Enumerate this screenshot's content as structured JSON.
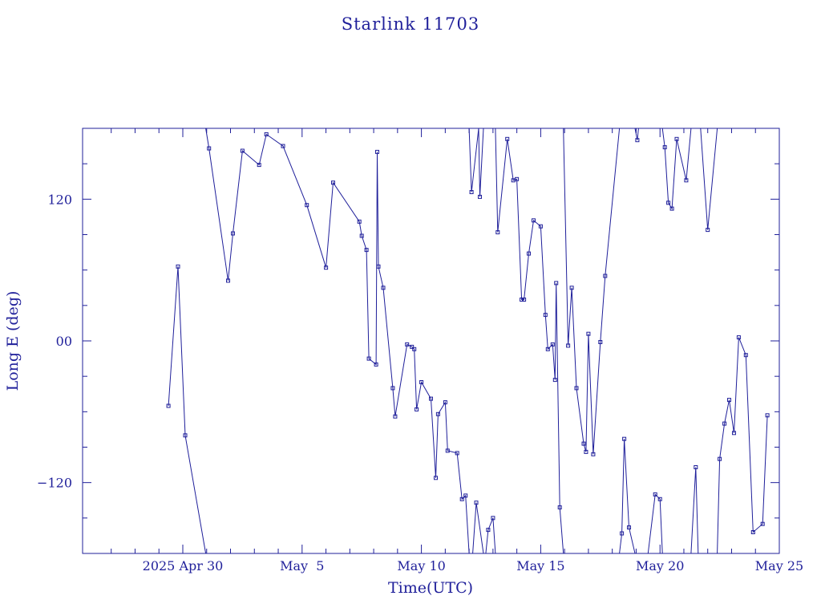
{
  "chart_data": {
    "type": "line",
    "title": "Starlink 11703",
    "xlabel": "Time(UTC)",
    "ylabel": "Long E (deg)",
    "x_ticks": [
      {
        "label": "2025 Apr 30",
        "day": 0
      },
      {
        "label": "May  5",
        "day": 5
      },
      {
        "label": "May 10",
        "day": 10
      },
      {
        "label": "May 15",
        "day": 15
      },
      {
        "label": "May 20",
        "day": 20
      },
      {
        "label": "May 25",
        "day": 25
      }
    ],
    "y_ticks": [
      {
        "label": "120",
        "value": 120
      },
      {
        "label": "00",
        "value": 0
      },
      {
        "label": "−120",
        "value": -120
      }
    ],
    "xlim_days_from_apr30": [
      -4.2,
      25.0
    ],
    "ylim": [
      -180,
      180
    ],
    "marker": "small-square",
    "grid": false,
    "series": [
      {
        "segments": [
          [
            [
              -0.6,
              -55
            ],
            [
              -0.2,
              63
            ],
            [
              0.1,
              -80
            ],
            [
              0.96,
              -180
            ]
          ],
          [
            [
              0.96,
              180
            ],
            [
              1.1,
              163
            ],
            [
              1.9,
              51
            ],
            [
              2.1,
              91
            ],
            [
              2.5,
              161
            ],
            [
              3.2,
              149
            ],
            [
              3.5,
              175
            ],
            [
              4.2,
              165
            ],
            [
              5.2,
              115
            ],
            [
              6.0,
              62
            ],
            [
              6.3,
              134
            ],
            [
              7.4,
              101
            ],
            [
              7.5,
              89
            ],
            [
              7.7,
              77
            ],
            [
              7.8,
              -15
            ],
            [
              8.1,
              -20
            ],
            [
              8.15,
              160
            ],
            [
              8.2,
              63
            ],
            [
              8.4,
              45
            ],
            [
              8.8,
              -40
            ],
            [
              8.9,
              -64
            ],
            [
              9.4,
              -3
            ],
            [
              9.6,
              -5
            ],
            [
              9.7,
              -7
            ],
            [
              9.8,
              -58
            ],
            [
              10.0,
              -35
            ],
            [
              10.4,
              -49
            ],
            [
              10.6,
              -116
            ],
            [
              10.7,
              -62
            ],
            [
              11.0,
              -52
            ],
            [
              11.1,
              -93
            ],
            [
              11.5,
              -95
            ],
            [
              11.7,
              -134
            ],
            [
              11.85,
              -131
            ],
            [
              12.0,
              -180
            ]
          ],
          [
            [
              12.0,
              180
            ],
            [
              12.1,
              126
            ],
            [
              12.4,
              180
            ]
          ],
          [
            [
              12.4,
              180
            ],
            [
              12.45,
              122
            ],
            [
              12.6,
              180
            ]
          ],
          [
            [
              12.6,
              -180
            ],
            [
              12.3,
              -137
            ],
            [
              12.15,
              -180
            ]
          ],
          [
            [
              12.7,
              -180
            ],
            [
              12.8,
              -160
            ],
            [
              13.0,
              -150
            ],
            [
              13.1,
              -180
            ]
          ],
          [
            [
              13.1,
              180
            ],
            [
              13.2,
              92
            ],
            [
              13.6,
              171
            ],
            [
              13.85,
              136
            ],
            [
              14.0,
              137
            ],
            [
              14.2,
              35
            ],
            [
              14.3,
              35
            ],
            [
              14.5,
              74
            ],
            [
              14.7,
              102
            ],
            [
              15.0,
              97
            ],
            [
              15.2,
              22
            ],
            [
              15.3,
              -7
            ],
            [
              15.5,
              -3
            ],
            [
              15.6,
              -33
            ],
            [
              15.65,
              49
            ],
            [
              15.8,
              -141
            ],
            [
              15.95,
              -180
            ]
          ],
          [
            [
              15.95,
              180
            ],
            [
              16.15,
              -4
            ],
            [
              16.3,
              45
            ],
            [
              16.5,
              -40
            ],
            [
              16.8,
              -87
            ],
            [
              16.9,
              -94
            ],
            [
              17.0,
              6
            ],
            [
              17.2,
              -96
            ],
            [
              17.5,
              -1
            ],
            [
              17.7,
              55
            ],
            [
              18.3,
              180
            ]
          ],
          [
            [
              18.3,
              -180
            ],
            [
              18.4,
              -163
            ],
            [
              18.5,
              -83
            ],
            [
              18.7,
              -158
            ],
            [
              18.95,
              -180
            ]
          ],
          [
            [
              18.95,
              180
            ],
            [
              19.05,
              170
            ],
            [
              19.1,
              180
            ]
          ],
          [
            [
              19.5,
              -180
            ],
            [
              19.8,
              -130
            ],
            [
              20.0,
              -134
            ],
            [
              20.1,
              -180
            ]
          ],
          [
            [
              20.1,
              180
            ],
            [
              20.2,
              164
            ],
            [
              20.35,
              117
            ],
            [
              20.5,
              112
            ],
            [
              20.7,
              171
            ],
            [
              21.1,
              136
            ],
            [
              21.3,
              180
            ]
          ],
          [
            [
              21.3,
              -180
            ],
            [
              21.5,
              -107
            ],
            [
              21.6,
              -180
            ]
          ],
          [
            [
              21.7,
              180
            ],
            [
              22.0,
              94
            ],
            [
              22.4,
              180
            ]
          ],
          [
            [
              22.4,
              -180
            ],
            [
              22.5,
              -100
            ],
            [
              22.7,
              -70
            ],
            [
              22.9,
              -50
            ],
            [
              23.1,
              -78
            ],
            [
              23.3,
              3
            ],
            [
              23.6,
              -12
            ],
            [
              23.9,
              -162
            ],
            [
              24.3,
              -155
            ],
            [
              24.5,
              -63
            ]
          ]
        ]
      }
    ]
  }
}
